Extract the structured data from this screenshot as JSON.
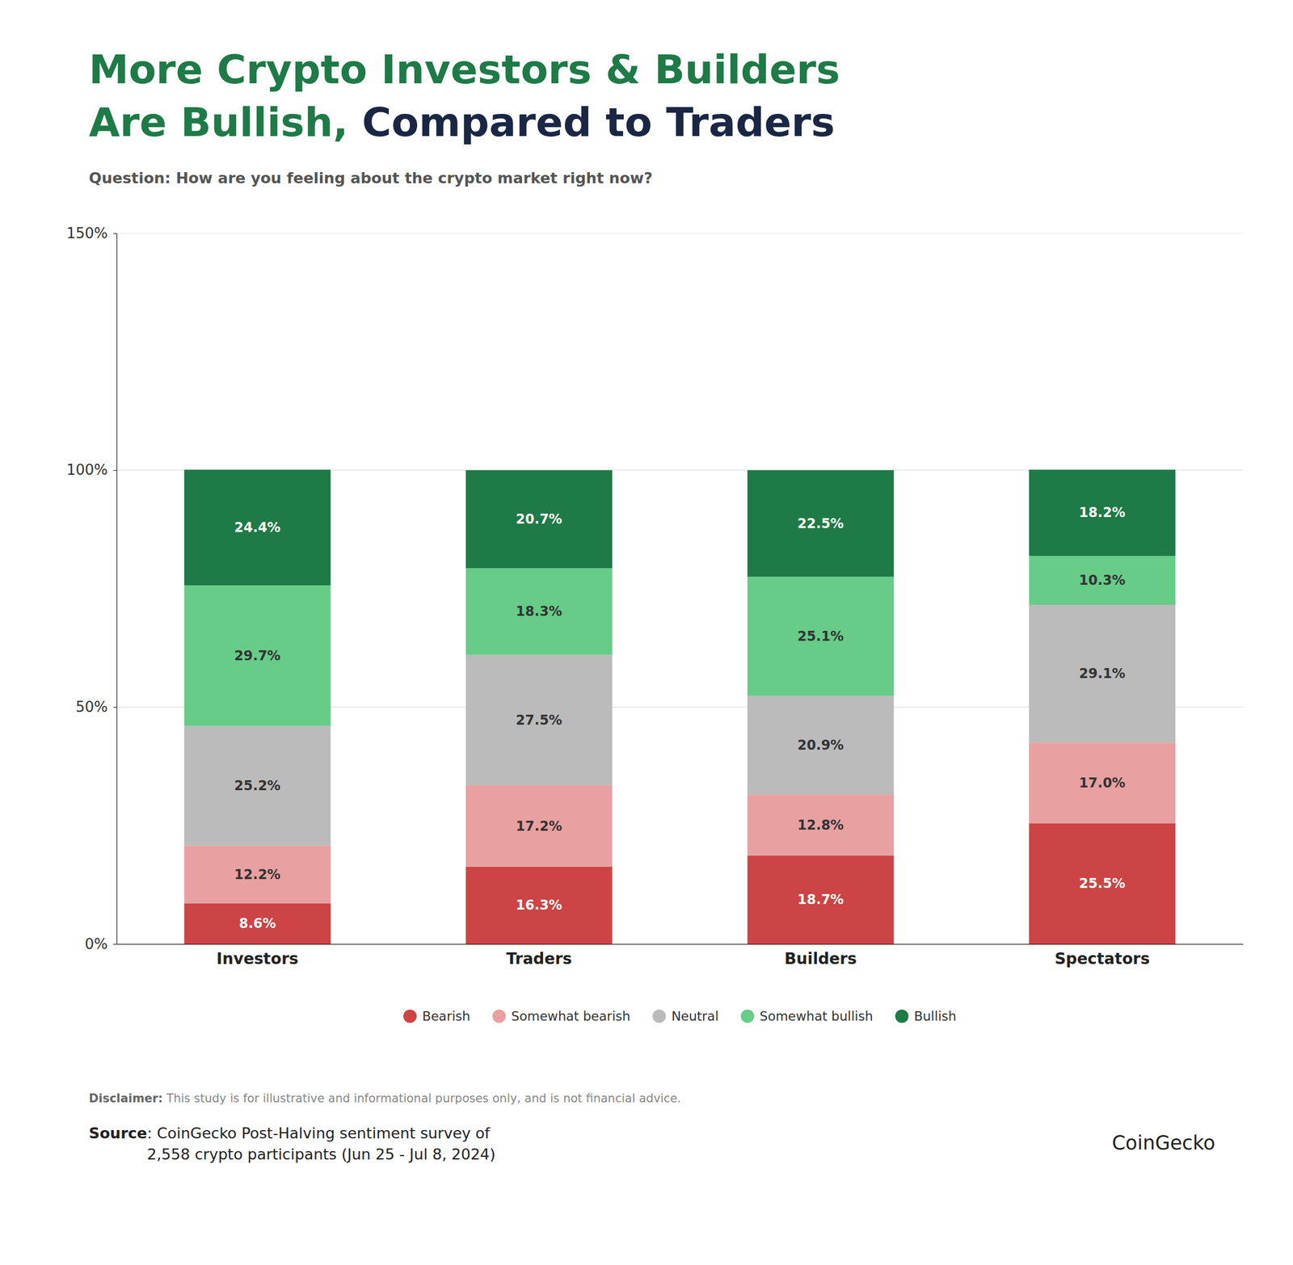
{
  "chart_data": {
    "type": "bar",
    "stacked": true,
    "title": [
      [
        {
          "text": "More Crypto Investors & Builders",
          "color": "#1e7a46"
        }
      ],
      [
        {
          "text": "Are Bullish, ",
          "color": "#1e7a46"
        },
        {
          "text": "Compared to Traders",
          "color": "#1a2744"
        }
      ]
    ],
    "subtitle": "Question: How are you feeling about the crypto market right now?",
    "categories": [
      "Investors",
      "Traders",
      "Builders",
      "Spectators"
    ],
    "series": [
      {
        "name": "Bearish",
        "color": "#cc4444",
        "values": [
          8.6,
          16.3,
          18.7,
          25.5
        ],
        "value_labels": [
          "8.6%",
          "16.3%",
          "18.7%",
          "25.5%"
        ]
      },
      {
        "name": "Somewhat bearish",
        "color": "#e8a0a0",
        "values": [
          12.2,
          17.2,
          12.8,
          17.0
        ],
        "value_labels": [
          "12.2%",
          "17.2%",
          "12.8%",
          "17.0%"
        ]
      },
      {
        "name": "Neutral",
        "color": "#bbbbbb",
        "values": [
          25.2,
          27.5,
          20.9,
          29.1
        ],
        "value_labels": [
          "25.2%",
          "27.5%",
          "20.9%",
          "29.1%"
        ]
      },
      {
        "name": "Somewhat bullish",
        "color": "#66cc88",
        "values": [
          29.7,
          18.3,
          25.1,
          10.3
        ],
        "value_labels": [
          "29.7%",
          "18.3%",
          "25.1%",
          "10.3%"
        ]
      },
      {
        "name": "Bullish",
        "color": "#1e7a46",
        "values": [
          24.4,
          20.7,
          22.5,
          18.2
        ],
        "value_labels": [
          "24.4%",
          "20.7%",
          "22.5%",
          "18.2%"
        ]
      }
    ],
    "ylim": [
      0,
      150
    ],
    "yticks": [
      {
        "value": 0,
        "label": "0%"
      },
      {
        "value": 50,
        "label": "50%"
      },
      {
        "value": 100,
        "label": "100%"
      },
      {
        "value": 150,
        "label": "150%"
      }
    ],
    "grid": true,
    "data_labels": true,
    "legend": "bottom",
    "annotations": [
      [
        "Disclaimer:",
        " This study is for illustrative and informational purposes only, and is not financial advice."
      ],
      [
        "Source",
        ": CoinGecko Post-Halving sentiment survey of"
      ],
      [
        "2,558 crypto participants (Jun 25 - Jul 8, 2024)"
      ],
      [
        "CoinGecko"
      ]
    ]
  }
}
